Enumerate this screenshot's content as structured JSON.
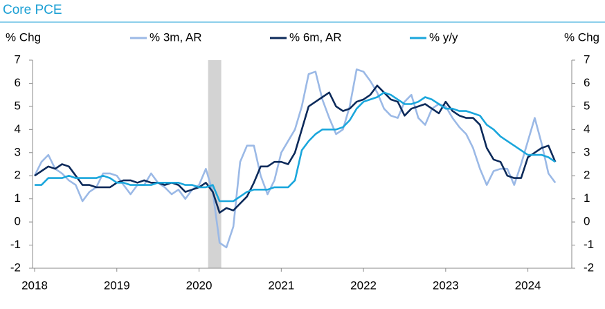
{
  "chart_data": {
    "type": "line",
    "title": "Core PCE",
    "ylabel": "% Chg",
    "y2label": "% Chg",
    "x": [
      2018,
      2018.083,
      2018.167,
      2018.25,
      2018.333,
      2018.417,
      2018.5,
      2018.583,
      2018.667,
      2018.75,
      2018.833,
      2018.917,
      2019,
      2019.083,
      2019.167,
      2019.25,
      2019.333,
      2019.417,
      2019.5,
      2019.583,
      2019.667,
      2019.75,
      2019.833,
      2019.917,
      2020,
      2020.083,
      2020.167,
      2020.25,
      2020.333,
      2020.417,
      2020.5,
      2020.583,
      2020.667,
      2020.75,
      2020.833,
      2020.917,
      2021,
      2021.083,
      2021.167,
      2021.25,
      2021.333,
      2021.417,
      2021.5,
      2021.583,
      2021.667,
      2021.75,
      2021.833,
      2021.917,
      2022,
      2022.083,
      2022.167,
      2022.25,
      2022.333,
      2022.417,
      2022.5,
      2022.583,
      2022.667,
      2022.75,
      2022.833,
      2022.917,
      2023,
      2023.083,
      2023.167,
      2023.25,
      2023.333,
      2023.417,
      2023.5,
      2023.583,
      2023.667,
      2023.75,
      2023.833,
      2023.917,
      2024,
      2024.083,
      2024.167,
      2024.25,
      2024.333
    ],
    "series": [
      {
        "name": "% 3m, AR",
        "color": "#9bb9e6",
        "values": [
          2.0,
          2.6,
          2.9,
          2.3,
          2.1,
          1.8,
          1.6,
          0.9,
          1.3,
          1.5,
          2.1,
          2.1,
          2.0,
          1.6,
          1.2,
          1.6,
          1.6,
          2.1,
          1.7,
          1.5,
          1.2,
          1.4,
          1.0,
          1.4,
          1.6,
          2.3,
          1.3,
          -0.9,
          -1.1,
          -0.2,
          2.6,
          3.3,
          3.3,
          2.0,
          1.2,
          1.8,
          3.0,
          3.5,
          4.0,
          5.0,
          6.4,
          6.5,
          5.3,
          4.5,
          3.8,
          4.0,
          5.0,
          6.6,
          6.5,
          6.1,
          5.6,
          4.9,
          4.6,
          4.5,
          5.2,
          5.5,
          4.5,
          4.2,
          4.9,
          5.1,
          5.0,
          4.5,
          4.1,
          3.8,
          3.2,
          2.3,
          1.6,
          2.2,
          2.3,
          2.3,
          1.6,
          2.5,
          3.5,
          4.5,
          3.4,
          2.1,
          1.7
        ]
      },
      {
        "name": "% 6m, AR",
        "color": "#0c2a5a",
        "values": [
          2.0,
          2.2,
          2.4,
          2.3,
          2.5,
          2.4,
          2.0,
          1.6,
          1.6,
          1.5,
          1.5,
          1.5,
          1.7,
          1.8,
          1.8,
          1.7,
          1.8,
          1.7,
          1.7,
          1.6,
          1.7,
          1.6,
          1.3,
          1.4,
          1.5,
          1.7,
          1.3,
          0.4,
          0.6,
          0.5,
          0.8,
          1.1,
          1.7,
          2.4,
          2.4,
          2.6,
          2.6,
          2.5,
          3.0,
          4.0,
          5.0,
          5.2,
          5.4,
          5.6,
          5.0,
          4.8,
          4.9,
          5.2,
          5.3,
          5.5,
          5.9,
          5.6,
          5.3,
          5.2,
          4.6,
          4.9,
          5.0,
          5.1,
          4.9,
          4.7,
          5.2,
          4.8,
          4.6,
          4.5,
          4.5,
          4.2,
          3.2,
          2.7,
          2.6,
          2.0,
          1.9,
          1.9,
          2.8,
          3.0,
          3.2,
          3.3,
          2.6
        ]
      },
      {
        "name": "% y/y",
        "color": "#1aa6dc",
        "values": [
          1.6,
          1.6,
          1.9,
          1.9,
          1.9,
          2.0,
          1.9,
          1.9,
          1.9,
          1.9,
          2.0,
          1.9,
          1.7,
          1.7,
          1.6,
          1.6,
          1.6,
          1.6,
          1.7,
          1.7,
          1.7,
          1.7,
          1.6,
          1.6,
          1.5,
          1.5,
          1.6,
          0.9,
          0.9,
          0.9,
          1.1,
          1.3,
          1.4,
          1.4,
          1.4,
          1.5,
          1.5,
          1.5,
          1.8,
          3.1,
          3.5,
          3.8,
          4.0,
          4.0,
          4.0,
          4.1,
          4.4,
          4.9,
          5.2,
          5.3,
          5.4,
          5.6,
          5.5,
          5.3,
          5.1,
          5.1,
          5.2,
          5.4,
          5.3,
          5.1,
          4.9,
          4.9,
          4.8,
          4.8,
          4.7,
          4.6,
          4.2,
          4.0,
          3.7,
          3.5,
          3.3,
          3.1,
          2.9,
          2.9,
          2.9,
          2.8,
          2.6
        ]
      }
    ],
    "shaded_range": [
      2020.11,
      2020.27
    ],
    "shade_color": "#d3d3d3",
    "xlim": [
      2018,
      2024.5
    ],
    "xticks": [
      2018,
      2019,
      2020,
      2021,
      2022,
      2023,
      2024
    ],
    "ylim": [
      -2,
      7
    ],
    "yticks": [
      -2,
      -1,
      0,
      1,
      2,
      3,
      4,
      5,
      6,
      7
    ],
    "y2lim": [
      -2,
      7
    ],
    "y2ticks": [
      -2,
      -1,
      0,
      1,
      2,
      3,
      4,
      5,
      6,
      7
    ]
  }
}
